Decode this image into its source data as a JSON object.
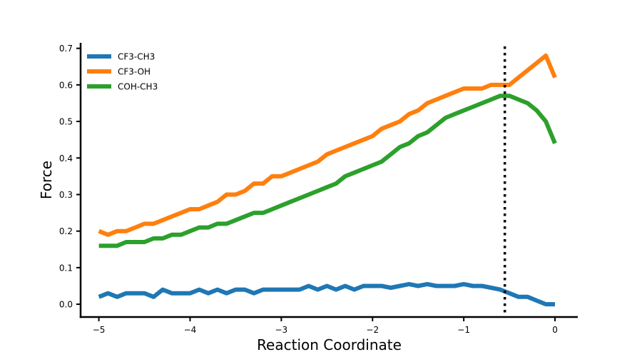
{
  "chart_data": {
    "type": "line",
    "xlabel": "Reaction Coordinate",
    "ylabel": "Force",
    "xlim": [
      -5.2,
      0.25
    ],
    "ylim": [
      -0.035,
      0.715
    ],
    "xticks": [
      -5,
      -4,
      -3,
      -2,
      -1,
      0
    ],
    "xtick_labels": [
      "−5",
      "−4",
      "−3",
      "−2",
      "−1",
      "0"
    ],
    "yticks": [
      0.0,
      0.1,
      0.2,
      0.3,
      0.4,
      0.5,
      0.6,
      0.7
    ],
    "ytick_labels": [
      "0.0",
      "0.1",
      "0.2",
      "0.3",
      "0.4",
      "0.5",
      "0.6",
      "0.7"
    ],
    "grid": false,
    "legend_position": "top-left",
    "vline": {
      "x": -0.55,
      "style": "dotted",
      "color": "#000000"
    },
    "x": [
      -5.0,
      -4.9,
      -4.8,
      -4.7,
      -4.6,
      -4.5,
      -4.4,
      -4.3,
      -4.2,
      -4.1,
      -4.0,
      -3.9,
      -3.8,
      -3.7,
      -3.6,
      -3.5,
      -3.4,
      -3.3,
      -3.2,
      -3.1,
      -3.0,
      -2.9,
      -2.8,
      -2.7,
      -2.6,
      -2.5,
      -2.4,
      -2.3,
      -2.2,
      -2.1,
      -2.0,
      -1.9,
      -1.8,
      -1.7,
      -1.6,
      -1.5,
      -1.4,
      -1.3,
      -1.2,
      -1.1,
      -1.0,
      -0.9,
      -0.8,
      -0.7,
      -0.6,
      -0.5,
      -0.4,
      -0.3,
      -0.2,
      -0.1,
      0.0
    ],
    "series": [
      {
        "name": "CF3-CH3",
        "color": "#1f77b4",
        "values": [
          0.02,
          0.03,
          0.02,
          0.03,
          0.03,
          0.03,
          0.02,
          0.04,
          0.03,
          0.03,
          0.03,
          0.04,
          0.03,
          0.04,
          0.03,
          0.04,
          0.04,
          0.03,
          0.04,
          0.04,
          0.04,
          0.04,
          0.04,
          0.05,
          0.04,
          0.05,
          0.04,
          0.05,
          0.04,
          0.05,
          0.05,
          0.05,
          0.045,
          0.05,
          0.055,
          0.05,
          0.055,
          0.05,
          0.05,
          0.05,
          0.055,
          0.05,
          0.05,
          0.045,
          0.04,
          0.03,
          0.02,
          0.02,
          0.01,
          0.0,
          0.0
        ]
      },
      {
        "name": "CF3-OH",
        "color": "#ff7f0e",
        "values": [
          0.2,
          0.19,
          0.2,
          0.2,
          0.21,
          0.22,
          0.22,
          0.23,
          0.24,
          0.25,
          0.26,
          0.26,
          0.27,
          0.28,
          0.3,
          0.3,
          0.31,
          0.33,
          0.33,
          0.35,
          0.35,
          0.36,
          0.37,
          0.38,
          0.39,
          0.41,
          0.42,
          0.43,
          0.44,
          0.45,
          0.46,
          0.48,
          0.49,
          0.5,
          0.52,
          0.53,
          0.55,
          0.56,
          0.57,
          0.58,
          0.59,
          0.59,
          0.59,
          0.6,
          0.6,
          0.6,
          0.62,
          0.64,
          0.66,
          0.68,
          0.62
        ]
      },
      {
        "name": "COH-CH3",
        "color": "#2ca02c",
        "values": [
          0.16,
          0.16,
          0.16,
          0.17,
          0.17,
          0.17,
          0.18,
          0.18,
          0.19,
          0.19,
          0.2,
          0.21,
          0.21,
          0.22,
          0.22,
          0.23,
          0.24,
          0.25,
          0.25,
          0.26,
          0.27,
          0.28,
          0.29,
          0.3,
          0.31,
          0.32,
          0.33,
          0.35,
          0.36,
          0.37,
          0.38,
          0.39,
          0.41,
          0.43,
          0.44,
          0.46,
          0.47,
          0.49,
          0.51,
          0.52,
          0.53,
          0.54,
          0.55,
          0.56,
          0.57,
          0.57,
          0.56,
          0.55,
          0.53,
          0.5,
          0.44
        ]
      }
    ]
  }
}
